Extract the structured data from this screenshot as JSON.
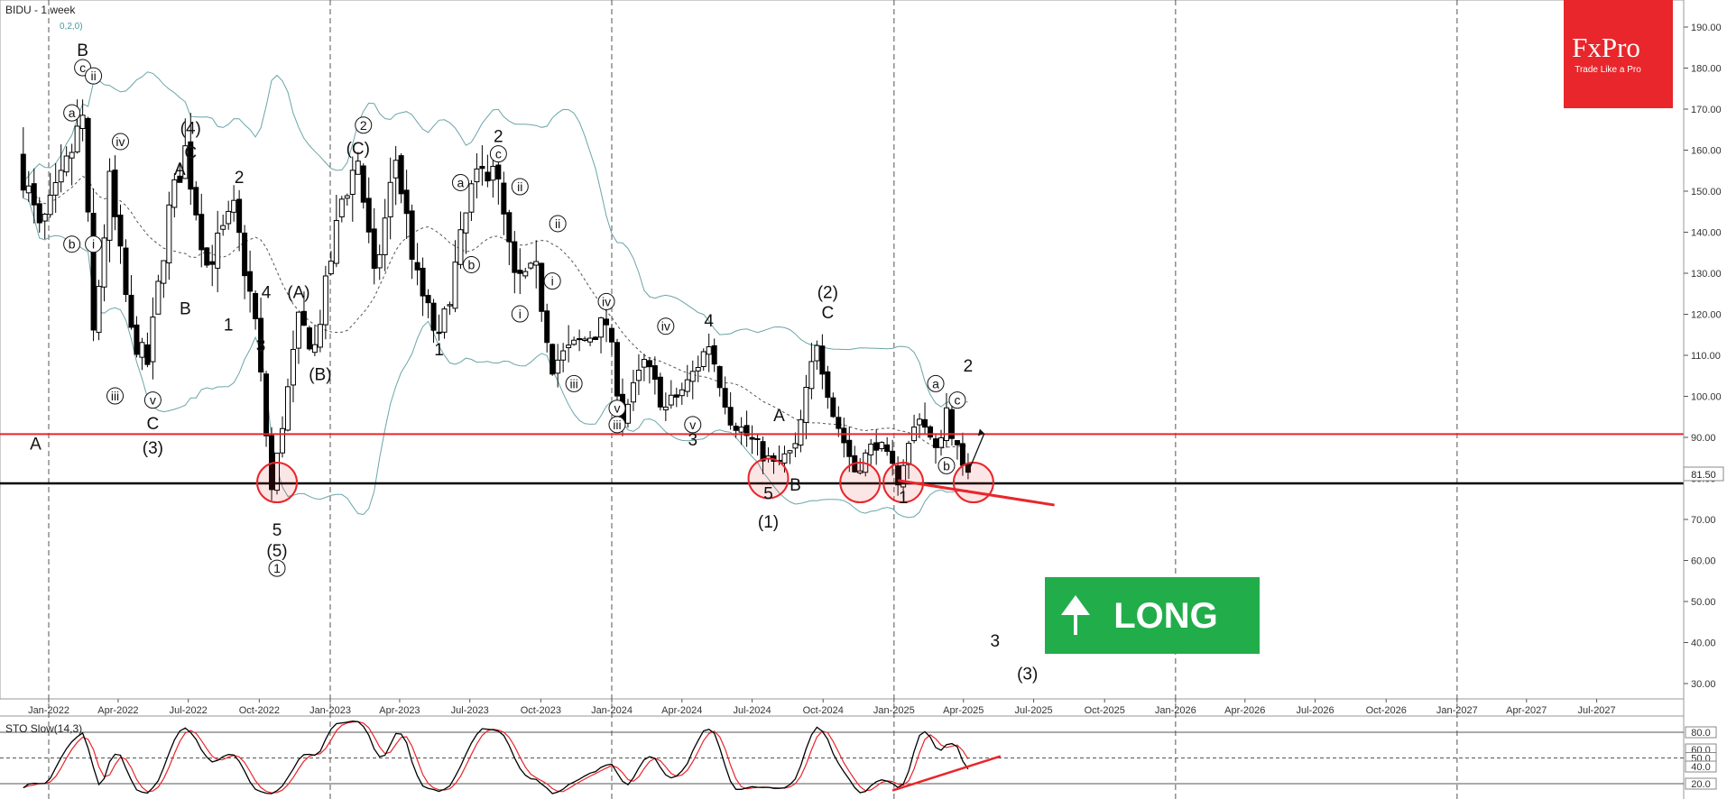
{
  "header": {
    "symbol": "BIDU - 1 week",
    "sub": "0,2,0)"
  },
  "brand": {
    "name": "FxPro",
    "tagline": "Trade Like a Pro",
    "color": "#e8262b"
  },
  "signal": {
    "label": "LONG",
    "color": "#22ad4b"
  },
  "price_tag": "81.50",
  "oscillator": {
    "title": "STO Slow(14,3)",
    "levels": [
      "80.0",
      "60.0",
      "50.0",
      "40.0",
      "20.0"
    ]
  },
  "colors": {
    "support_line": "#000000",
    "resistance_line": "#e8262b",
    "band": "#6ba5a8",
    "mark": "#e8262b"
  },
  "chart_data": {
    "type": "candlestick",
    "x_ticks": [
      "Jan-2022",
      "Apr-2022",
      "Jul-2022",
      "Oct-2022",
      "Jan-2023",
      "Apr-2023",
      "Jul-2023",
      "Oct-2023",
      "Jan-2024",
      "Apr-2024",
      "Jul-2024",
      "Oct-2024",
      "Jan-2025",
      "Apr-2025",
      "Jul-2025",
      "Oct-2025",
      "Jan-2026",
      "Apr-2026",
      "Jul-2026",
      "Oct-2026",
      "Jan-2027",
      "Apr-2027",
      "Jul-2027"
    ],
    "y_ticks": [
      "190.00",
      "180.00",
      "170.00",
      "160.00",
      "150.00",
      "140.00",
      "130.00",
      "120.00",
      "110.00",
      "100.00",
      "90.00",
      "80.00",
      "70.00",
      "60.00",
      "50.00",
      "40.00",
      "30.00"
    ],
    "ylim": [
      25,
      197
    ],
    "levels": {
      "support": 78.8,
      "resistance": 90.8
    },
    "price_path": [
      [
        "2021-11-29",
        159
      ],
      [
        "2021-12-27",
        140
      ],
      [
        "2022-01-24",
        152
      ],
      [
        "2022-02-21",
        168
      ],
      [
        "2022-03-07",
        115
      ],
      [
        "2022-03-28",
        152
      ],
      [
        "2022-04-25",
        115
      ],
      [
        "2022-05-16",
        108
      ],
      [
        "2022-06-13",
        145
      ],
      [
        "2022-07-04",
        160
      ],
      [
        "2022-08-01",
        132
      ],
      [
        "2022-09-05",
        145
      ],
      [
        "2022-10-03",
        118
      ],
      [
        "2022-10-24",
        77
      ],
      [
        "2022-11-28",
        118
      ],
      [
        "2022-12-19",
        112
      ],
      [
        "2023-01-23",
        148
      ],
      [
        "2023-02-13",
        158
      ],
      [
        "2023-03-06",
        128
      ],
      [
        "2023-04-03",
        158
      ],
      [
        "2023-05-01",
        128
      ],
      [
        "2023-05-29",
        113
      ],
      [
        "2023-07-10",
        150
      ],
      [
        "2023-08-07",
        158
      ],
      [
        "2023-09-04",
        128
      ],
      [
        "2023-10-02",
        130
      ],
      [
        "2023-10-23",
        108
      ],
      [
        "2023-11-20",
        112
      ],
      [
        "2024-01-01",
        118
      ],
      [
        "2024-01-22",
        95
      ],
      [
        "2024-02-19",
        108
      ],
      [
        "2024-03-18",
        97
      ],
      [
        "2024-04-15",
        103
      ],
      [
        "2024-05-13",
        113
      ],
      [
        "2024-06-10",
        95
      ],
      [
        "2024-07-08",
        89
      ],
      [
        "2024-08-05",
        83
      ],
      [
        "2024-09-02",
        87
      ],
      [
        "2024-09-30",
        114
      ],
      [
        "2024-10-21",
        96
      ],
      [
        "2024-11-18",
        82
      ],
      [
        "2024-12-16",
        89
      ],
      [
        "2025-01-13",
        80
      ],
      [
        "2025-02-10",
        96
      ],
      [
        "2025-03-03",
        86
      ],
      [
        "2025-03-17",
        97
      ],
      [
        "2025-04-07",
        81.5
      ]
    ],
    "projection": [
      [
        "2025-04-07",
        81.5
      ],
      [
        "2025-04-28",
        91
      ]
    ],
    "last_price": 81.5,
    "wave_labels": [
      {
        "t": "A",
        "d": "2021-12-15",
        "p": 87,
        "s": "plain"
      },
      {
        "t": "B",
        "d": "2022-02-14",
        "p": 183,
        "s": "plain"
      },
      {
        "t": "a",
        "d": "2022-01-31",
        "p": 168,
        "s": "circle"
      },
      {
        "t": "b",
        "d": "2022-01-31",
        "p": 136,
        "s": "circle"
      },
      {
        "t": "c",
        "d": "2022-02-14",
        "p": 179,
        "s": "circle"
      },
      {
        "t": "ii",
        "d": "2022-02-28",
        "p": 177,
        "s": "circle"
      },
      {
        "t": "i",
        "d": "2022-02-28",
        "p": 136,
        "s": "circle"
      },
      {
        "t": "iv",
        "d": "2022-04-04",
        "p": 161,
        "s": "circle"
      },
      {
        "t": "iii",
        "d": "2022-03-28",
        "p": 99,
        "s": "circle"
      },
      {
        "t": "v",
        "d": "2022-05-16",
        "p": 98,
        "s": "circle"
      },
      {
        "t": "C",
        "d": "2022-05-16",
        "p": 92,
        "s": "plain"
      },
      {
        "t": "(3)",
        "d": "2022-05-16",
        "p": 86,
        "s": "plain"
      },
      {
        "t": "A",
        "d": "2022-06-20",
        "p": 154,
        "s": "plain"
      },
      {
        "t": "(4)",
        "d": "2022-07-04",
        "p": 164,
        "s": "plain"
      },
      {
        "t": "C",
        "d": "2022-07-04",
        "p": 158,
        "s": "plain"
      },
      {
        "t": "B",
        "d": "2022-06-27",
        "p": 120,
        "s": "plain"
      },
      {
        "t": "1",
        "d": "2022-08-22",
        "p": 116,
        "s": "plain"
      },
      {
        "t": "2",
        "d": "2022-09-05",
        "p": 152,
        "s": "plain"
      },
      {
        "t": "4",
        "d": "2022-10-10",
        "p": 124,
        "s": "plain"
      },
      {
        "t": "3",
        "d": "2022-10-03",
        "p": 111,
        "s": "plain"
      },
      {
        "t": "5",
        "d": "2022-10-24",
        "p": 66,
        "s": "plain"
      },
      {
        "t": "(5)",
        "d": "2022-10-24",
        "p": 61,
        "s": "plain"
      },
      {
        "t": "1",
        "d": "2022-10-24",
        "p": 57,
        "s": "circle"
      },
      {
        "t": "(A)",
        "d": "2022-11-21",
        "p": 124,
        "s": "plain"
      },
      {
        "t": "(B)",
        "d": "2022-12-19",
        "p": 104,
        "s": "plain"
      },
      {
        "t": "(C)",
        "d": "2023-02-06",
        "p": 159,
        "s": "plain"
      },
      {
        "t": "2",
        "d": "2023-02-13",
        "p": 165,
        "s": "circle"
      },
      {
        "t": "1",
        "d": "2023-05-22",
        "p": 110,
        "s": "plain"
      },
      {
        "t": "a",
        "d": "2023-06-19",
        "p": 151,
        "s": "circle"
      },
      {
        "t": "b",
        "d": "2023-07-03",
        "p": 131,
        "s": "circle"
      },
      {
        "t": "2",
        "d": "2023-08-07",
        "p": 162,
        "s": "plain"
      },
      {
        "t": "c",
        "d": "2023-08-07",
        "p": 158,
        "s": "circle"
      },
      {
        "t": "ii",
        "d": "2023-09-04",
        "p": 150,
        "s": "circle"
      },
      {
        "t": "ii",
        "d": "2023-10-23",
        "p": 141,
        "s": "circle"
      },
      {
        "t": "i",
        "d": "2023-10-16",
        "p": 127,
        "s": "circle"
      },
      {
        "t": "i",
        "d": "2023-09-04",
        "p": 119,
        "s": "circle"
      },
      {
        "t": "iii",
        "d": "2023-11-13",
        "p": 102,
        "s": "circle"
      },
      {
        "t": "iv",
        "d": "2023-12-25",
        "p": 122,
        "s": "circle"
      },
      {
        "t": "v",
        "d": "2024-01-08",
        "p": 96,
        "s": "circle"
      },
      {
        "t": "iii",
        "d": "2024-01-08",
        "p": 92,
        "s": "circle"
      },
      {
        "t": "iv",
        "d": "2024-03-11",
        "p": 116,
        "s": "circle"
      },
      {
        "t": "4",
        "d": "2024-05-06",
        "p": 117,
        "s": "plain"
      },
      {
        "t": "v",
        "d": "2024-04-15",
        "p": 92,
        "s": "circle"
      },
      {
        "t": "3",
        "d": "2024-04-15",
        "p": 88,
        "s": "plain"
      },
      {
        "t": "A",
        "d": "2024-08-05",
        "p": 94,
        "s": "plain"
      },
      {
        "t": "5",
        "d": "2024-07-22",
        "p": 75,
        "s": "plain"
      },
      {
        "t": "B",
        "d": "2024-08-26",
        "p": 77,
        "s": "plain"
      },
      {
        "t": "(1)",
        "d": "2024-07-22",
        "p": 68,
        "s": "plain"
      },
      {
        "t": "(2)",
        "d": "2024-10-07",
        "p": 124,
        "s": "plain"
      },
      {
        "t": "C",
        "d": "2024-10-07",
        "p": 119,
        "s": "plain"
      },
      {
        "t": "1",
        "d": "2025-01-13",
        "p": 74,
        "s": "plain"
      },
      {
        "t": "a",
        "d": "2025-02-24",
        "p": 102,
        "s": "circle"
      },
      {
        "t": "c",
        "d": "2025-03-24",
        "p": 98,
        "s": "circle"
      },
      {
        "t": "b",
        "d": "2025-03-10",
        "p": 82,
        "s": "circle"
      },
      {
        "t": "2",
        "d": "2025-04-07",
        "p": 106,
        "s": "plain"
      },
      {
        "t": "3",
        "d": "2025-05-12",
        "p": 39,
        "s": "plain"
      },
      {
        "t": "(3)",
        "d": "2025-06-23",
        "p": 31,
        "s": "plain"
      }
    ],
    "marked_lows": [
      [
        "2022-10-24",
        79
      ],
      [
        "2024-07-22",
        80
      ],
      [
        "2024-11-18",
        79
      ],
      [
        "2025-01-13",
        79
      ],
      [
        "2025-04-14",
        79
      ]
    ]
  }
}
